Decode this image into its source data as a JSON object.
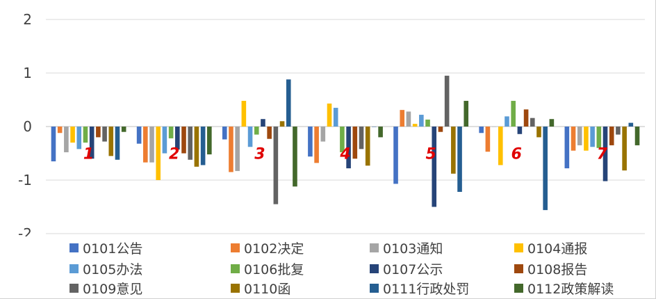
{
  "chart_data": {
    "type": "bar",
    "title": "",
    "xlabel": "",
    "ylabel": "",
    "ylim": [
      -2,
      2
    ],
    "yticks": [
      "2",
      "1",
      "0",
      "-1",
      "-2"
    ],
    "ytick_values": [
      2,
      1,
      0,
      -1,
      -2
    ],
    "grid": true,
    "legend_position": "bottom",
    "categories": [
      "1",
      "2",
      "3",
      "4",
      "5",
      "6",
      "7"
    ],
    "series": [
      {
        "name": "0101公告",
        "color": "#4472C4",
        "values": [
          -0.65,
          -0.32,
          -0.24,
          -0.56,
          -1.07,
          -0.12,
          -0.78
        ]
      },
      {
        "name": "0102决定",
        "color": "#ED7D31",
        "values": [
          -0.12,
          -0.67,
          -0.85,
          -0.68,
          0.31,
          -0.47,
          -0.45
        ]
      },
      {
        "name": "0103通知",
        "color": "#A5A5A5",
        "values": [
          -0.48,
          -0.67,
          -0.83,
          -0.28,
          0.28,
          0.0,
          -0.35
        ]
      },
      {
        "name": "0104通报",
        "color": "#FFC000",
        "values": [
          -0.3,
          -1.0,
          0.48,
          0.43,
          0.05,
          -0.72,
          -0.45
        ]
      },
      {
        "name": "0105办法",
        "color": "#5B9BD5",
        "values": [
          -0.42,
          -0.5,
          -0.38,
          0.35,
          0.22,
          0.19,
          -0.38
        ]
      },
      {
        "name": "0106批复",
        "color": "#70AD47",
        "values": [
          -0.3,
          -0.22,
          -0.15,
          -0.48,
          0.13,
          0.48,
          -0.4
        ]
      },
      {
        "name": "0107公示",
        "color": "#264478",
        "values": [
          -0.6,
          -0.43,
          0.14,
          -0.78,
          -1.5,
          -0.14,
          -1.02
        ]
      },
      {
        "name": "0108报告",
        "color": "#9E480E",
        "values": [
          -0.2,
          -0.5,
          -0.23,
          -0.6,
          -0.1,
          0.32,
          -0.35
        ]
      },
      {
        "name": "0109意见",
        "color": "#636363",
        "values": [
          -0.28,
          -0.62,
          -1.45,
          -0.42,
          0.95,
          0.16,
          -0.15
        ]
      },
      {
        "name": "0110函",
        "color": "#997300",
        "values": [
          -0.55,
          -0.75,
          0.1,
          -0.73,
          -0.88,
          -0.2,
          -0.82
        ]
      },
      {
        "name": "0111行政处罚",
        "color": "#255E91",
        "values": [
          -0.62,
          -0.72,
          0.88,
          0.0,
          -1.22,
          -1.56,
          0.07
        ]
      },
      {
        "name": "0112政策解读",
        "color": "#43682B",
        "values": [
          -0.1,
          -0.52,
          -1.12,
          -0.2,
          0.48,
          0.14,
          -0.35
        ]
      }
    ]
  }
}
